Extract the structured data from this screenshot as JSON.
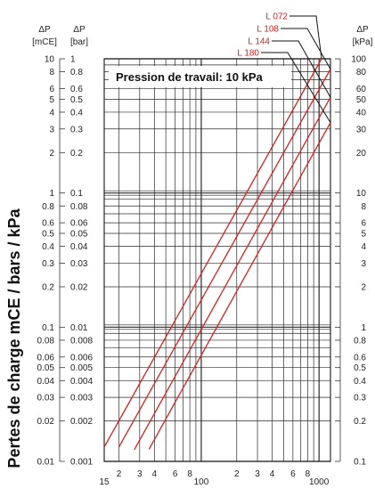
{
  "chart_data": {
    "type": "line",
    "title": "",
    "ylabel": "Pertes de charge mCE / bars / kPa",
    "annotation": "Pression de travail: 10 kPa",
    "x_scale": "log",
    "y_scale": "log",
    "xlim": [
      15,
      1250
    ],
    "ylim_mce": [
      0.01,
      10
    ],
    "x_ticks": [
      {
        "v": 15,
        "label": "15"
      },
      {
        "v": 20,
        "label": "2"
      },
      {
        "v": 30,
        "label": "3"
      },
      {
        "v": 40,
        "label": "4"
      },
      {
        "v": 60,
        "label": "6"
      },
      {
        "v": 80,
        "label": "8"
      },
      {
        "v": 100,
        "label": "100"
      },
      {
        "v": 200,
        "label": "2"
      },
      {
        "v": 300,
        "label": "3"
      },
      {
        "v": 400,
        "label": "4"
      },
      {
        "v": 600,
        "label": "6"
      },
      {
        "v": 800,
        "label": "8"
      },
      {
        "v": 1000,
        "label": "1000"
      }
    ],
    "axis_headers": {
      "left1_symbol": "ΔP",
      "left1_unit": "[mCE]",
      "left2_symbol": "ΔP",
      "left2_unit": "[bar]",
      "right_symbol": "ΔP",
      "right_unit": "[kPa]"
    },
    "y_ticks": [
      {
        "v": 10,
        "mce": "10",
        "bar": "1",
        "kpa": "100"
      },
      {
        "v": 8,
        "mce": "8",
        "bar": "0.8",
        "kpa": "80"
      },
      {
        "v": 6,
        "mce": "6",
        "bar": "0.6",
        "kpa": "60"
      },
      {
        "v": 5,
        "mce": "5",
        "bar": "0.5",
        "kpa": "50"
      },
      {
        "v": 4,
        "mce": "4",
        "bar": "0.4",
        "kpa": "40"
      },
      {
        "v": 3,
        "mce": "3",
        "bar": "0.3",
        "kpa": "30"
      },
      {
        "v": 2,
        "mce": "2",
        "bar": "0.2",
        "kpa": "20"
      },
      {
        "v": 1,
        "mce": "1",
        "bar": "0.1",
        "kpa": "10"
      },
      {
        "v": 0.8,
        "mce": "0.8",
        "bar": "0.08",
        "kpa": "8"
      },
      {
        "v": 0.6,
        "mce": "0.6",
        "bar": "0.06",
        "kpa": "6"
      },
      {
        "v": 0.5,
        "mce": "0.5",
        "bar": "0.05",
        "kpa": "5"
      },
      {
        "v": 0.4,
        "mce": "0.4",
        "bar": "0.04",
        "kpa": "4"
      },
      {
        "v": 0.3,
        "mce": "0.3",
        "bar": "0.03",
        "kpa": "3"
      },
      {
        "v": 0.2,
        "mce": "0.2",
        "bar": "0.02",
        "kpa": "2"
      },
      {
        "v": 0.1,
        "mce": "0.1",
        "bar": "0.01",
        "kpa": "1"
      },
      {
        "v": 0.08,
        "mce": "0.08",
        "bar": "0.008",
        "kpa": "0.8"
      },
      {
        "v": 0.06,
        "mce": "0.06",
        "bar": "0.006",
        "kpa": "0.6"
      },
      {
        "v": 0.05,
        "mce": "0.05",
        "bar": "0.005",
        "kpa": "0.5"
      },
      {
        "v": 0.04,
        "mce": "0.04",
        "bar": "0.004",
        "kpa": "0.4"
      },
      {
        "v": 0.03,
        "mce": "0.03",
        "bar": "0.003",
        "kpa": "0.3"
      },
      {
        "v": 0.02,
        "mce": "0.02",
        "bar": "0.002",
        "kpa": "0.2"
      },
      {
        "v": 0.01,
        "mce": "0.01",
        "bar": "0.001",
        "kpa": "0.1"
      }
    ],
    "series": [
      {
        "name": "L 072",
        "points": [
          [
            15,
            0.0128
          ],
          [
            1050,
            10
          ]
        ]
      },
      {
        "name": "L 108",
        "points": [
          [
            20,
            0.0128
          ],
          [
            1400,
            10
          ]
        ]
      },
      {
        "name": "L 144",
        "points": [
          [
            27,
            0.0122
          ],
          [
            1900,
            10
          ]
        ]
      },
      {
        "name": "L 180",
        "points": [
          [
            36,
            0.0123
          ],
          [
            2500,
            10
          ]
        ]
      }
    ],
    "colors": {
      "series": "#d62020",
      "grid": "#2a2a2a",
      "text": "#222222"
    }
  }
}
